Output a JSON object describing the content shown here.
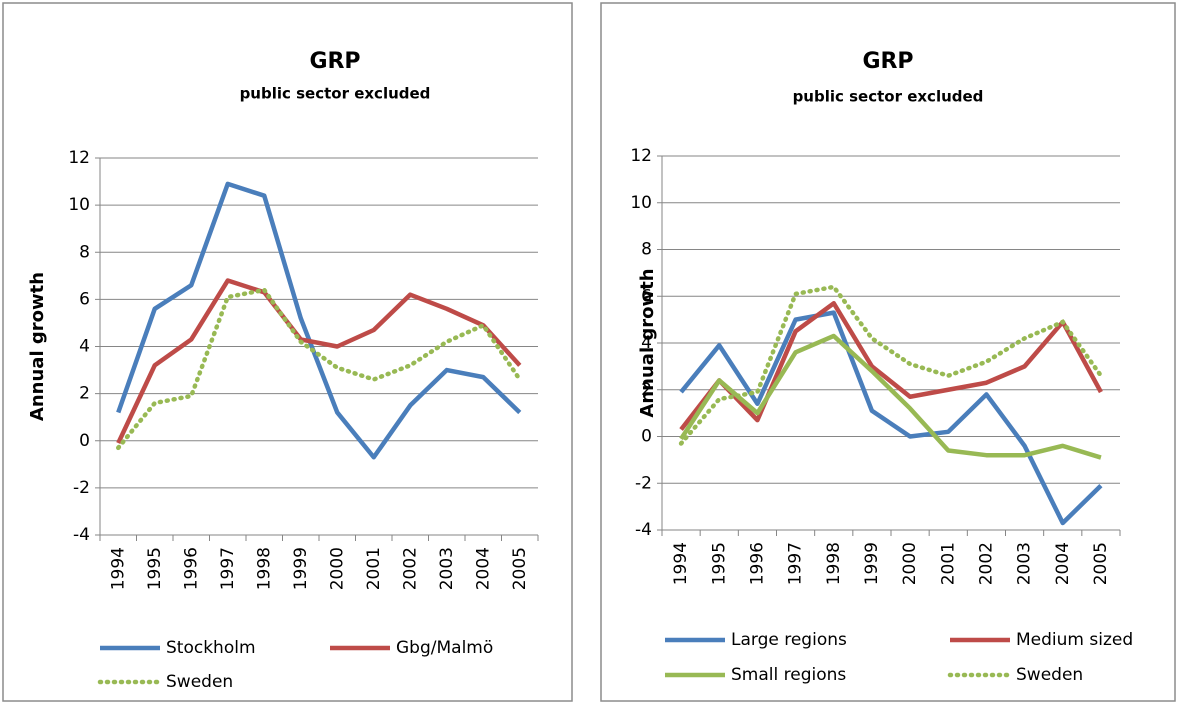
{
  "chart_data": [
    {
      "type": "line",
      "title": "GRP",
      "subtitle": "public sector excluded",
      "y_label": "Annual growth",
      "categories": [
        "1994",
        "1995",
        "1996",
        "1997",
        "1998",
        "1999",
        "2000",
        "2001",
        "2002",
        "2003",
        "2004",
        "2005"
      ],
      "ylim": [
        -4,
        12
      ],
      "yticks": [
        -4,
        -2,
        0,
        2,
        4,
        6,
        8,
        10,
        12
      ],
      "grid": true,
      "series": [
        {
          "name": "Stockholm",
          "color": "#4a7ebb",
          "style": "solid",
          "values": [
            1.2,
            5.6,
            6.6,
            10.9,
            10.4,
            5.2,
            1.2,
            -0.7,
            1.5,
            3.0,
            2.7,
            1.2
          ]
        },
        {
          "name": "Gbg/Malmö",
          "color": "#be4b48",
          "style": "solid",
          "values": [
            -0.1,
            3.2,
            4.3,
            6.8,
            6.3,
            4.3,
            4.0,
            4.7,
            6.2,
            5.6,
            4.9,
            3.2
          ]
        },
        {
          "name": "Sweden",
          "color": "#98b954",
          "style": "dotted",
          "values": [
            -0.3,
            1.6,
            1.9,
            6.1,
            6.4,
            4.2,
            3.1,
            2.6,
            3.2,
            4.2,
            4.9,
            2.6
          ]
        }
      ]
    },
    {
      "type": "line",
      "title": "GRP",
      "subtitle": "public sector excluded",
      "y_label": "Annual growth",
      "categories": [
        "1994",
        "1995",
        "1996",
        "1997",
        "1998",
        "1999",
        "2000",
        "2001",
        "2002",
        "2003",
        "2004",
        "2005"
      ],
      "ylim": [
        -4,
        12
      ],
      "yticks": [
        -4,
        -2,
        0,
        2,
        4,
        6,
        8,
        10,
        12
      ],
      "grid": true,
      "series": [
        {
          "name": "Large regions",
          "color": "#4a7ebb",
          "style": "solid",
          "values": [
            1.9,
            3.9,
            1.4,
            5.0,
            5.3,
            1.1,
            0.0,
            0.2,
            1.8,
            -0.4,
            -3.7,
            -2.1
          ]
        },
        {
          "name": "Medium sized",
          "color": "#be4b48",
          "style": "solid",
          "values": [
            0.3,
            2.4,
            0.7,
            4.5,
            5.7,
            3.0,
            1.7,
            2.0,
            2.3,
            3.0,
            4.9,
            1.9
          ]
        },
        {
          "name": "Small regions",
          "color": "#98b954",
          "style": "solid",
          "values": [
            -0.1,
            2.4,
            1.0,
            3.6,
            4.3,
            2.8,
            1.2,
            -0.6,
            -0.8,
            -0.8,
            -0.4,
            -0.9
          ]
        },
        {
          "name": "Sweden",
          "color": "#98b954",
          "style": "dotted",
          "values": [
            -0.3,
            1.6,
            1.9,
            6.1,
            6.4,
            4.2,
            3.1,
            2.6,
            3.2,
            4.2,
            4.9,
            2.6
          ]
        }
      ]
    }
  ]
}
